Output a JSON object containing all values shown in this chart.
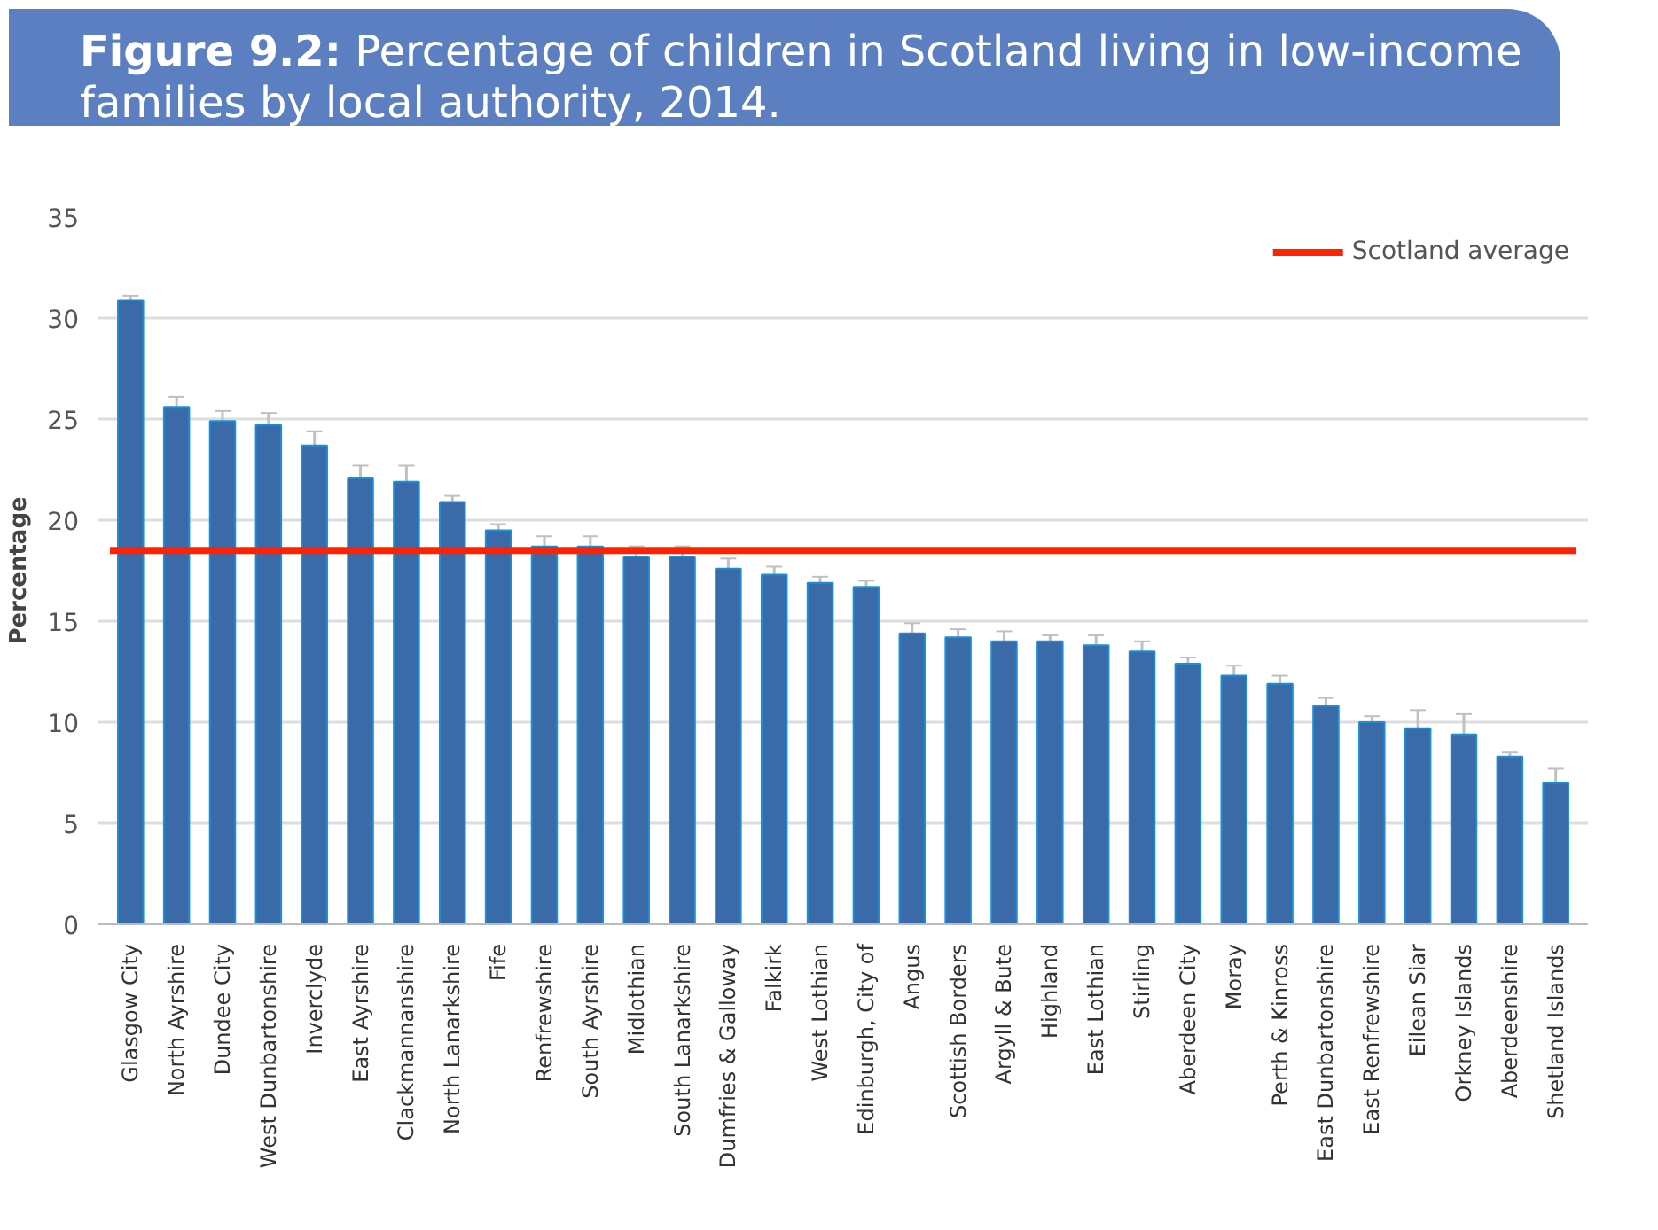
{
  "chart_data": {
    "type": "bar",
    "title": "Figure 9.2: Percentage of children in Scotland living in low-income families by local authority, 2014.",
    "ylabel": "Percentage",
    "categories": [
      "Glasgow City",
      "North Ayrshire",
      "Dundee City",
      "West Dunbartonshire",
      "Inverclyde",
      "East Ayrshire",
      "Clackmannanshire",
      "North Lanarkshire",
      "Fife",
      "Renfrewshire",
      "South Ayrshire",
      "Midlothian",
      "South Lanarkshire",
      "Dumfries & Galloway",
      "Falkirk",
      "West Lothian",
      "Edinburgh, City of",
      "Angus",
      "Scottish Borders",
      "Argyll & Bute",
      "Highland",
      "East Lothian",
      "Stirling",
      "Aberdeen City",
      "Moray",
      "Perth & Kinross",
      "East Dunbartonshire",
      "East Renfrewshire",
      "Eilean Siar",
      "Orkney Islands",
      "Aberdeenshire",
      "Shetland Islands"
    ],
    "values": [
      30.9,
      25.6,
      24.9,
      24.7,
      23.7,
      22.1,
      21.9,
      20.9,
      19.5,
      18.7,
      18.7,
      18.2,
      18.2,
      17.6,
      17.3,
      16.9,
      16.7,
      14.4,
      14.2,
      14.0,
      14.0,
      13.8,
      13.5,
      12.9,
      12.3,
      11.9,
      10.8,
      10.0,
      9.7,
      9.4,
      8.3,
      7.0
    ],
    "errors": [
      0.2,
      0.5,
      0.5,
      0.6,
      0.7,
      0.6,
      0.8,
      0.3,
      0.3,
      0.5,
      0.5,
      0.5,
      0.5,
      0.5,
      0.4,
      0.3,
      0.3,
      0.5,
      0.4,
      0.5,
      0.3,
      0.5,
      0.5,
      0.3,
      0.5,
      0.4,
      0.4,
      0.3,
      0.9,
      1.0,
      0.2,
      0.7
    ],
    "color": "#3b6aa8",
    "ylim": [
      0,
      35
    ],
    "yticks": [
      0,
      5,
      10,
      15,
      20,
      25,
      30,
      35
    ],
    "grid": "y",
    "legend": "top right",
    "ref_lines": [
      {
        "axis": "y",
        "value": 18.5,
        "label": "Scotland average",
        "color": "#ff2200"
      }
    ]
  }
}
